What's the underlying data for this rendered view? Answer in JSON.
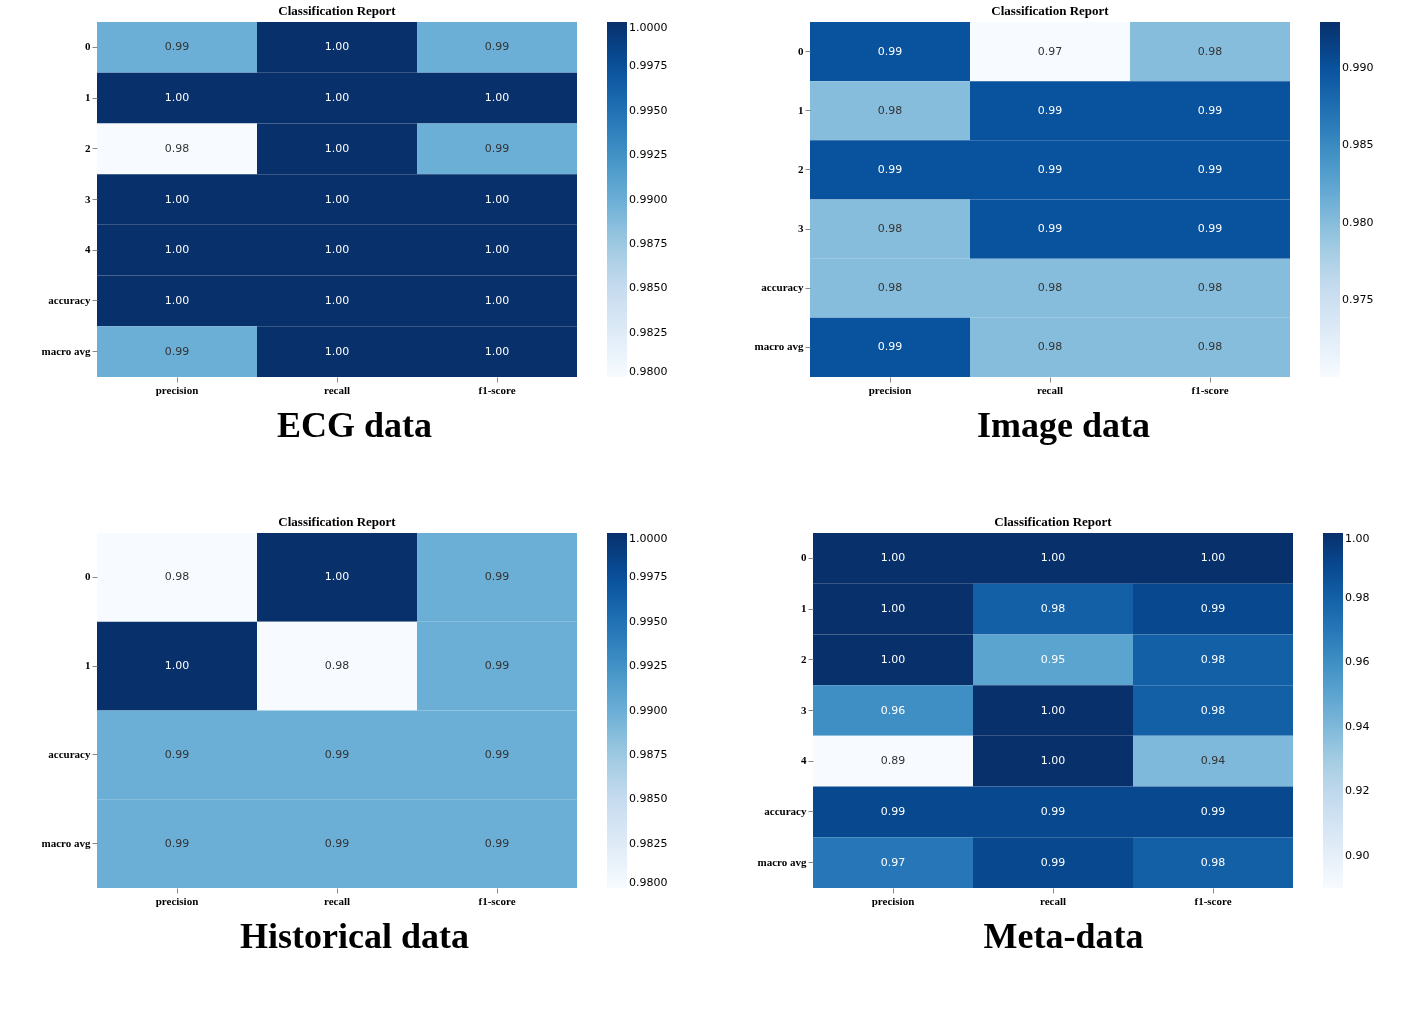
{
  "chart_data": [
    {
      "type": "heatmap",
      "title": "Classification Report",
      "categories": [
        "precision",
        "recall",
        "f1-score"
      ],
      "y_categories": [
        "0",
        "1",
        "2",
        "3",
        "4",
        "accuracy",
        "macro avg"
      ],
      "cells": [
        [
          0.99,
          1.0,
          0.99
        ],
        [
          1.0,
          1.0,
          1.0
        ],
        [
          0.98,
          1.0,
          0.99
        ],
        [
          1.0,
          1.0,
          1.0
        ],
        [
          1.0,
          1.0,
          1.0
        ],
        [
          1.0,
          1.0,
          1.0
        ],
        [
          0.99,
          1.0,
          1.0
        ]
      ],
      "cell_labels": [
        [
          "0.99",
          "1.00",
          "0.99"
        ],
        [
          "1.00",
          "1.00",
          "1.00"
        ],
        [
          "0.98",
          "1.00",
          "0.99"
        ],
        [
          "1.00",
          "1.00",
          "1.00"
        ],
        [
          "1.00",
          "1.00",
          "1.00"
        ],
        [
          "1.00",
          "1.00",
          "1.00"
        ],
        [
          "0.99",
          "1.00",
          "1.00"
        ]
      ],
      "clim": [
        0.98,
        1.0
      ],
      "cticks": [
        {
          "value": 0.98,
          "label": "0.9800"
        },
        {
          "value": 0.9825,
          "label": "0.9825"
        },
        {
          "value": 0.985,
          "label": "0.9850"
        },
        {
          "value": 0.9875,
          "label": "0.9875"
        },
        {
          "value": 0.99,
          "label": "0.9900"
        },
        {
          "value": 0.9925,
          "label": "0.9925"
        },
        {
          "value": 0.995,
          "label": "0.9950"
        },
        {
          "value": 0.9975,
          "label": "0.9975"
        },
        {
          "value": 1.0,
          "label": "1.0000"
        }
      ],
      "annotations": [
        "ECG data"
      ]
    },
    {
      "type": "heatmap",
      "title": "Classification Report",
      "categories": [
        "precision",
        "recall",
        "f1-score"
      ],
      "y_categories": [
        "0",
        "1",
        "2",
        "3",
        "accuracy",
        "macro avg"
      ],
      "cells": [
        [
          0.99,
          0.97,
          0.98
        ],
        [
          0.98,
          0.99,
          0.99
        ],
        [
          0.99,
          0.99,
          0.99
        ],
        [
          0.98,
          0.99,
          0.99
        ],
        [
          0.98,
          0.98,
          0.98
        ],
        [
          0.99,
          0.98,
          0.98
        ]
      ],
      "cell_labels": [
        [
          "0.99",
          "0.97",
          "0.98"
        ],
        [
          "0.98",
          "0.99",
          "0.99"
        ],
        [
          "0.99",
          "0.99",
          "0.99"
        ],
        [
          "0.98",
          "0.99",
          "0.99"
        ],
        [
          "0.98",
          "0.98",
          "0.98"
        ],
        [
          "0.99",
          "0.98",
          "0.98"
        ]
      ],
      "clim": [
        0.97,
        0.993
      ],
      "cticks": [
        {
          "value": 0.975,
          "label": "0.975"
        },
        {
          "value": 0.98,
          "label": "0.980"
        },
        {
          "value": 0.985,
          "label": "0.985"
        },
        {
          "value": 0.99,
          "label": "0.990"
        }
      ],
      "annotations": [
        "Image data"
      ]
    },
    {
      "type": "heatmap",
      "title": "Classification Report",
      "categories": [
        "precision",
        "recall",
        "f1-score"
      ],
      "y_categories": [
        "0",
        "1",
        "accuracy",
        "macro avg"
      ],
      "cells": [
        [
          0.98,
          1.0,
          0.99
        ],
        [
          1.0,
          0.98,
          0.99
        ],
        [
          0.99,
          0.99,
          0.99
        ],
        [
          0.99,
          0.99,
          0.99
        ]
      ],
      "cell_labels": [
        [
          "0.98",
          "1.00",
          "0.99"
        ],
        [
          "1.00",
          "0.98",
          "0.99"
        ],
        [
          "0.99",
          "0.99",
          "0.99"
        ],
        [
          "0.99",
          "0.99",
          "0.99"
        ]
      ],
      "clim": [
        0.98,
        1.0
      ],
      "cticks": [
        {
          "value": 0.98,
          "label": "0.9800"
        },
        {
          "value": 0.9825,
          "label": "0.9825"
        },
        {
          "value": 0.985,
          "label": "0.9850"
        },
        {
          "value": 0.9875,
          "label": "0.9875"
        },
        {
          "value": 0.99,
          "label": "0.9900"
        },
        {
          "value": 0.9925,
          "label": "0.9925"
        },
        {
          "value": 0.995,
          "label": "0.9950"
        },
        {
          "value": 0.9975,
          "label": "0.9975"
        },
        {
          "value": 1.0,
          "label": "1.0000"
        }
      ],
      "annotations": [
        "Historical data"
      ]
    },
    {
      "type": "heatmap",
      "title": "Classification Report",
      "categories": [
        "precision",
        "recall",
        "f1-score"
      ],
      "y_categories": [
        "0",
        "1",
        "2",
        "3",
        "4",
        "accuracy",
        "macro avg"
      ],
      "cells": [
        [
          1.0,
          1.0,
          1.0
        ],
        [
          1.0,
          0.98,
          0.99
        ],
        [
          1.0,
          0.95,
          0.98
        ],
        [
          0.96,
          1.0,
          0.98
        ],
        [
          0.89,
          1.0,
          0.94
        ],
        [
          0.99,
          0.99,
          0.99
        ],
        [
          0.97,
          0.99,
          0.98
        ]
      ],
      "cell_labels": [
        [
          "1.00",
          "1.00",
          "1.00"
        ],
        [
          "1.00",
          "0.98",
          "0.99"
        ],
        [
          "1.00",
          "0.95",
          "0.98"
        ],
        [
          "0.96",
          "1.00",
          "0.98"
        ],
        [
          "0.89",
          "1.00",
          "0.94"
        ],
        [
          "0.99",
          "0.99",
          "0.99"
        ],
        [
          "0.97",
          "0.99",
          "0.98"
        ]
      ],
      "clim": [
        0.89,
        1.0
      ],
      "cticks": [
        {
          "value": 0.9,
          "label": "0.90"
        },
        {
          "value": 0.92,
          "label": "0.92"
        },
        {
          "value": 0.94,
          "label": "0.94"
        },
        {
          "value": 0.96,
          "label": "0.96"
        },
        {
          "value": 0.98,
          "label": "0.98"
        },
        {
          "value": 1.0,
          "label": "1.00"
        }
      ],
      "annotations": [
        "Meta-data"
      ]
    }
  ]
}
